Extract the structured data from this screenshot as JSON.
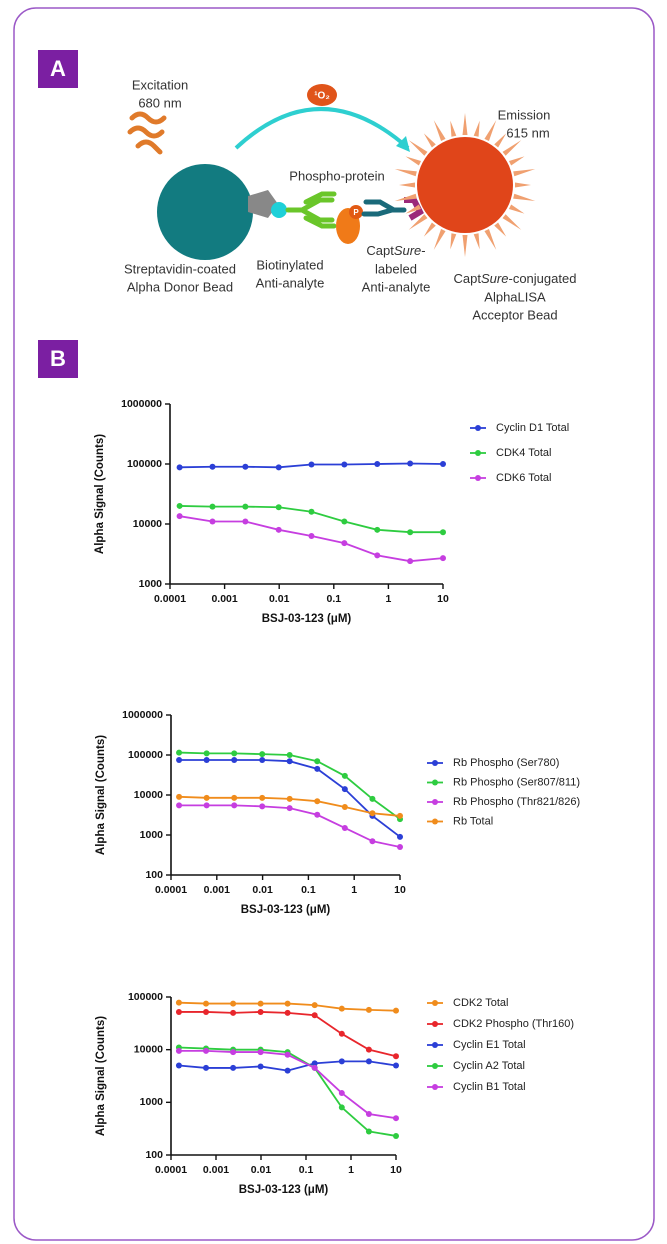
{
  "panels": [
    "A",
    "B"
  ],
  "diagram": {
    "excitation": "Excitation",
    "excitation_nm": "680 nm",
    "singlet_oxygen": "¹O₂",
    "emission": "Emission",
    "emission_nm": "615 nm",
    "phospho_protein": "Phospho-protein",
    "phospho_p": "P",
    "donor_line1": "Streptavidin-coated",
    "donor_line2": "Alpha Donor Bead",
    "biotin_line1": "Biotinylated",
    "biotin_line2": "Anti-analyte",
    "captlabel_capt": "Capt",
    "captlabel_sure": "Sure",
    "captlabel_dash": "-",
    "captlabel_line2": "labeled",
    "captlabel_line3": "Anti-analyte",
    "acceptor_capt": "Capt",
    "acceptor_sure": "Sure",
    "acceptor_rest": "-conjugated",
    "acceptor_line2": "AlphaLISA",
    "acceptor_line3": "Acceptor Bead"
  },
  "chart_data": [
    {
      "type": "line",
      "xscale": "log",
      "yscale": "log",
      "x_label": "BSJ-03-123 (μM)",
      "y_label": "Alpha Signal (Counts)",
      "x": [
        0.00015,
        0.0006,
        0.0024,
        0.0098,
        0.039,
        0.156,
        0.625,
        2.5,
        10
      ],
      "xlim": [
        0.0001,
        10
      ],
      "xticks": [
        0.0001,
        0.001,
        0.01,
        0.1,
        1,
        10
      ],
      "ylim": [
        1000,
        1000000
      ],
      "yticks": [
        1000,
        10000,
        100000,
        1000000
      ],
      "series": [
        {
          "name": "Cyclin D1 Total",
          "color": "#2b3fd6",
          "values": [
            88000,
            90000,
            90000,
            88000,
            98000,
            98000,
            100000,
            102000,
            100000
          ]
        },
        {
          "name": "CDK4 Total",
          "color": "#2ecc40",
          "values": [
            20000,
            19500,
            19500,
            19000,
            16000,
            11000,
            8000,
            7300,
            7300
          ]
        },
        {
          "name": "CDK6 Total",
          "color": "#c63ee0",
          "values": [
            13500,
            11000,
            11000,
            8000,
            6300,
            4800,
            3000,
            2400,
            2700
          ]
        }
      ]
    },
    {
      "type": "line",
      "xscale": "log",
      "yscale": "log",
      "x_label": "BSJ-03-123 (μM)",
      "y_label": "Alpha Signal (Counts)",
      "x": [
        0.00015,
        0.0006,
        0.0024,
        0.0098,
        0.039,
        0.156,
        0.625,
        2.5,
        10
      ],
      "xlim": [
        0.0001,
        10
      ],
      "xticks": [
        0.0001,
        0.001,
        0.01,
        0.1,
        1,
        10
      ],
      "ylim": [
        100,
        1000000
      ],
      "yticks": [
        100,
        1000,
        10000,
        100000,
        1000000
      ],
      "series": [
        {
          "name": "Rb Phospho (Ser780)",
          "color": "#2b3fd6",
          "values": [
            75000,
            75000,
            75000,
            75000,
            70000,
            45000,
            14000,
            3000,
            900
          ]
        },
        {
          "name": "Rb Phospho (Ser807/811)",
          "color": "#2ecc40",
          "values": [
            115000,
            110000,
            110000,
            105000,
            100000,
            70000,
            30000,
            8000,
            2500
          ]
        },
        {
          "name": "Rb Phospho (Thr821/826)",
          "color": "#c63ee0",
          "values": [
            5500,
            5500,
            5500,
            5200,
            4700,
            3200,
            1500,
            700,
            500
          ]
        },
        {
          "name": "Rb Total",
          "color": "#f08c1c",
          "values": [
            9000,
            8500,
            8500,
            8500,
            8000,
            7000,
            5000,
            3500,
            3000
          ]
        }
      ]
    },
    {
      "type": "line",
      "xscale": "log",
      "yscale": "log",
      "x_label": "BSJ-03-123 (μM)",
      "y_label": "Alpha Signal (Counts)",
      "x": [
        0.00015,
        0.0006,
        0.0024,
        0.0098,
        0.039,
        0.156,
        0.625,
        2.5,
        10
      ],
      "xlim": [
        0.0001,
        10
      ],
      "xticks": [
        0.0001,
        0.001,
        0.01,
        0.1,
        1,
        10
      ],
      "ylim": [
        100,
        100000
      ],
      "yticks": [
        100,
        1000,
        10000,
        100000
      ],
      "series": [
        {
          "name": "CDK2 Total",
          "color": "#f08c1c",
          "values": [
            78000,
            75000,
            75000,
            75000,
            75000,
            70000,
            60000,
            57000,
            55000
          ]
        },
        {
          "name": "CDK2 Phospho (Thr160)",
          "color": "#e8262c",
          "values": [
            52000,
            52000,
            50000,
            52000,
            50000,
            45000,
            20000,
            10000,
            7500
          ]
        },
        {
          "name": "Cyclin E1 Total",
          "color": "#2b3fd6",
          "values": [
            5000,
            4500,
            4500,
            4800,
            4000,
            5500,
            6000,
            6000,
            5000
          ]
        },
        {
          "name": "Cyclin A2 Total",
          "color": "#2ecc40",
          "values": [
            11000,
            10500,
            10000,
            10000,
            9000,
            4500,
            800,
            280,
            230
          ]
        },
        {
          "name": "Cyclin B1 Total",
          "color": "#c63ee0",
          "values": [
            9500,
            9500,
            9000,
            9000,
            8000,
            4500,
            1500,
            600,
            500
          ]
        }
      ]
    }
  ]
}
